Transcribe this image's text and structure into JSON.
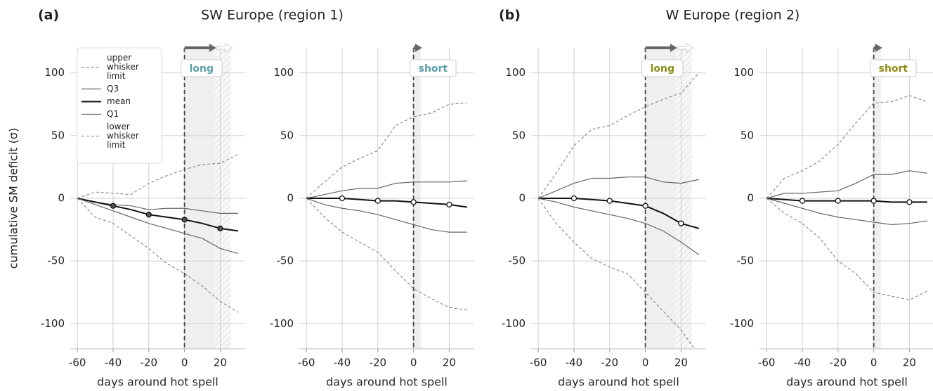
{
  "chart_data": [
    {
      "type": "line",
      "panel_label": "(a)",
      "title": "SW Europe (region 1)",
      "ylabel": "cumulative SM deficit (σ)",
      "xlabel": "days around hot spell",
      "xlim": [
        -64,
        34
      ],
      "ylim": [
        -120,
        120
      ],
      "xticks": [
        -60,
        -40,
        -20,
        0,
        20
      ],
      "yticks": [
        -100,
        -50,
        0,
        50,
        100
      ],
      "grid": true,
      "legend": "upper left",
      "highlight": {
        "label": "long",
        "color": "#5b9ea8",
        "shade": [
          0,
          17
        ],
        "hatch": [
          17,
          26
        ]
      },
      "x": [
        -60,
        -50,
        -40,
        -30,
        -20,
        -10,
        0,
        10,
        20,
        30
      ],
      "series": [
        {
          "name": "upper whisker limit",
          "color": "#777777",
          "dashed": true,
          "linewidth": 1,
          "values": [
            0,
            5,
            4,
            3,
            12,
            18,
            23,
            27,
            28,
            35
          ]
        },
        {
          "name": "Q3",
          "color": "#666666",
          "dashed": false,
          "linewidth": 1.2,
          "values": [
            0,
            -3,
            -5,
            -6,
            -9,
            -8,
            -8,
            -10,
            -12,
            -12
          ]
        },
        {
          "name": "mean",
          "color": "#111111",
          "dashed": false,
          "linewidth": 2,
          "marker_fill": "#555555",
          "values": [
            0,
            -3,
            -6,
            -9,
            -13,
            -15,
            -17,
            -20,
            -24,
            -26
          ]
        },
        {
          "name": "Q1",
          "color": "#666666",
          "dashed": false,
          "linewidth": 1.2,
          "values": [
            0,
            -5,
            -10,
            -15,
            -20,
            -24,
            -28,
            -32,
            -40,
            -44
          ]
        },
        {
          "name": "lower whisker limit",
          "color": "#777777",
          "dashed": true,
          "linewidth": 1,
          "values": [
            0,
            -15,
            -20,
            -30,
            -40,
            -52,
            -60,
            -70,
            -82,
            -91
          ]
        }
      ]
    },
    {
      "type": "line",
      "xlabel": "days around hot spell",
      "xlim": [
        -64,
        34
      ],
      "ylim": [
        -120,
        120
      ],
      "xticks": [
        -60,
        -40,
        -20,
        0,
        20
      ],
      "yticks": [
        -100,
        -50,
        0,
        50,
        100
      ],
      "grid": true,
      "highlight": {
        "label": "short",
        "color": "#5b9ea8",
        "shade": [
          0,
          4
        ]
      },
      "x": [
        -60,
        -50,
        -40,
        -30,
        -20,
        -10,
        0,
        10,
        20,
        30
      ],
      "series": [
        {
          "color": "#777777",
          "dashed": true,
          "linewidth": 1,
          "values": [
            0,
            13,
            25,
            32,
            38,
            58,
            65,
            68,
            75,
            76
          ]
        },
        {
          "color": "#666666",
          "dashed": false,
          "linewidth": 1.2,
          "values": [
            0,
            3,
            6,
            8,
            8,
            12,
            13,
            13,
            13,
            14
          ]
        },
        {
          "color": "#111111",
          "dashed": false,
          "linewidth": 2,
          "marker_fill": "#ffffff",
          "values": [
            0,
            0,
            0,
            -1,
            -2,
            -2,
            -3,
            -4,
            -5,
            -7
          ]
        },
        {
          "color": "#666666",
          "dashed": false,
          "linewidth": 1.2,
          "values": [
            0,
            -5,
            -8,
            -10,
            -13,
            -17,
            -21,
            -25,
            -27,
            -27
          ]
        },
        {
          "color": "#777777",
          "dashed": true,
          "linewidth": 1,
          "values": [
            0,
            -15,
            -27,
            -35,
            -43,
            -58,
            -72,
            -80,
            -87,
            -89
          ]
        }
      ]
    },
    {
      "type": "line",
      "panel_label": "(b)",
      "title": "W Europe (region 2)",
      "xlabel": "days around hot spell",
      "xlim": [
        -64,
        34
      ],
      "ylim": [
        -120,
        120
      ],
      "xticks": [
        -60,
        -40,
        -20,
        0,
        20
      ],
      "yticks": [
        -100,
        -50,
        0,
        50,
        100
      ],
      "grid": true,
      "highlight": {
        "label": "long",
        "color": "#8c8c14",
        "shade": [
          0,
          17
        ],
        "hatch": [
          17,
          26
        ]
      },
      "x": [
        -60,
        -50,
        -40,
        -30,
        -20,
        -10,
        0,
        10,
        20,
        30
      ],
      "series": [
        {
          "color": "#777777",
          "dashed": true,
          "linewidth": 1,
          "values": [
            0,
            20,
            42,
            55,
            58,
            66,
            73,
            79,
            84,
            100
          ]
        },
        {
          "color": "#666666",
          "dashed": false,
          "linewidth": 1.2,
          "values": [
            0,
            6,
            12,
            16,
            16,
            17,
            17,
            13,
            12,
            15
          ]
        },
        {
          "color": "#111111",
          "dashed": false,
          "linewidth": 2,
          "marker_fill": "#ffffff",
          "values": [
            0,
            0,
            0,
            -1,
            -2,
            -4,
            -6,
            -12,
            -20,
            -24
          ]
        },
        {
          "color": "#666666",
          "dashed": false,
          "linewidth": 1.2,
          "values": [
            0,
            -3,
            -7,
            -10,
            -13,
            -16,
            -20,
            -26,
            -35,
            -45
          ]
        },
        {
          "color": "#777777",
          "dashed": true,
          "linewidth": 1,
          "values": [
            0,
            -20,
            -35,
            -48,
            -55,
            -60,
            -75,
            -90,
            -105,
            -125
          ]
        }
      ]
    },
    {
      "type": "line",
      "xlabel": "days around hot spell",
      "xlim": [
        -64,
        34
      ],
      "ylim": [
        -120,
        120
      ],
      "xticks": [
        -60,
        -40,
        -20,
        0,
        20
      ],
      "yticks": [
        -100,
        -50,
        0,
        50,
        100
      ],
      "grid": true,
      "highlight": {
        "label": "short",
        "color": "#8c8c14",
        "shade": [
          0,
          4
        ]
      },
      "x": [
        -60,
        -50,
        -40,
        -30,
        -20,
        -10,
        0,
        10,
        20,
        30
      ],
      "series": [
        {
          "color": "#777777",
          "dashed": true,
          "linewidth": 1,
          "values": [
            0,
            16,
            22,
            30,
            43,
            60,
            76,
            77,
            82,
            77
          ]
        },
        {
          "color": "#666666",
          "dashed": false,
          "linewidth": 1.2,
          "values": [
            0,
            4,
            4,
            5,
            6,
            12,
            19,
            19,
            22,
            20
          ]
        },
        {
          "color": "#111111",
          "dashed": false,
          "linewidth": 2,
          "marker_fill": "#ffffff",
          "values": [
            0,
            -1,
            -2,
            -2,
            -2,
            -2,
            -2,
            -3,
            -3,
            -3
          ]
        },
        {
          "color": "#666666",
          "dashed": false,
          "linewidth": 1.2,
          "values": [
            0,
            -4,
            -8,
            -12,
            -15,
            -17,
            -19,
            -21,
            -20,
            -18
          ]
        },
        {
          "color": "#777777",
          "dashed": true,
          "linewidth": 1,
          "values": [
            0,
            -12,
            -20,
            -32,
            -50,
            -60,
            -75,
            -78,
            -81,
            -74
          ]
        }
      ]
    }
  ]
}
